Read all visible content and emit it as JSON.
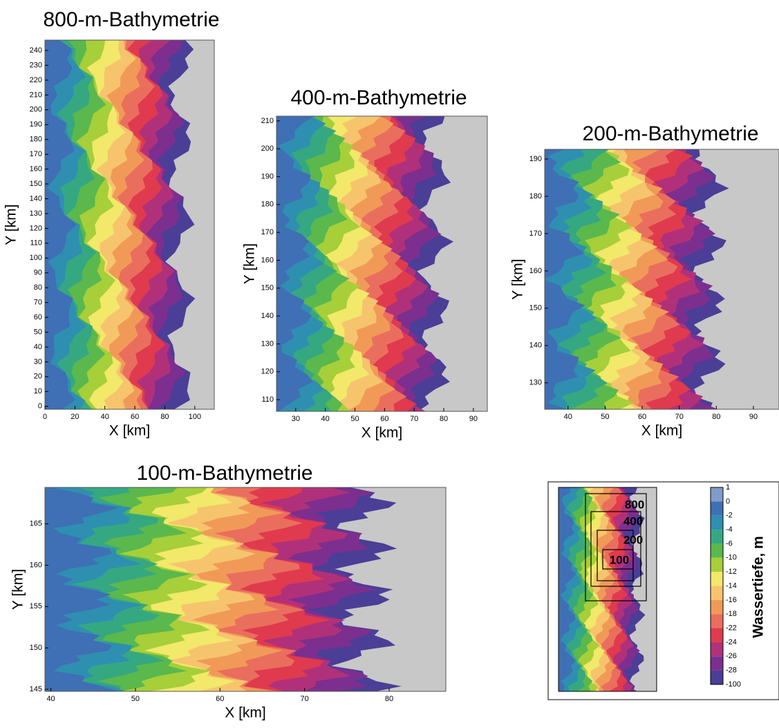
{
  "panels": [
    {
      "title": "800-m-Bathymetrie",
      "xlabel": "X [km]",
      "ylabel": "Y [km]",
      "xlim": [
        0,
        113
      ],
      "ylim": [
        -2,
        247
      ],
      "xticks": [
        0,
        20,
        40,
        60,
        80,
        100
      ],
      "yticks": [
        0,
        10,
        20,
        30,
        40,
        50,
        60,
        70,
        80,
        90,
        100,
        110,
        120,
        130,
        140,
        150,
        160,
        170,
        180,
        190,
        200,
        210,
        220,
        230,
        240
      ]
    },
    {
      "title": "400-m-Bathymetrie",
      "xlabel": "X [km]",
      "ylabel": "Y [km]",
      "xlim": [
        23.5,
        94.7
      ],
      "ylim": [
        105.8,
        211.7
      ],
      "xticks": [
        30,
        40,
        50,
        60,
        70,
        80,
        90
      ],
      "yticks": [
        110,
        120,
        130,
        140,
        150,
        160,
        170,
        180,
        190,
        200,
        210
      ]
    },
    {
      "title": "200-m-Bathymetrie",
      "xlabel": "X [km]",
      "ylabel": "Y [km]",
      "xlim": [
        33.7,
        96.9
      ],
      "ylim": [
        122.9,
        192.6
      ],
      "xticks": [
        40,
        50,
        60,
        70,
        80,
        90
      ],
      "yticks": [
        130,
        140,
        150,
        160,
        170,
        180,
        190
      ]
    },
    {
      "title": "100-m-Bathymetrie",
      "xlabel": "X [km]",
      "ylabel": "Y [km]",
      "xlim": [
        39.3,
        86.7
      ],
      "ylim": [
        144.75,
        169.4
      ],
      "xticks": [
        40,
        50,
        60,
        70,
        80
      ],
      "yticks": [
        145,
        150,
        155,
        160,
        165
      ]
    }
  ],
  "inset": {
    "boxes": [
      "800",
      "400",
      "200",
      "100"
    ]
  },
  "colorbar": {
    "label": "Wassertiefe, m",
    "levels": [
      1,
      0,
      -2,
      -4,
      -6,
      -10,
      -12,
      -14,
      -16,
      -18,
      -22,
      -24,
      -26,
      -28,
      -100
    ],
    "colors": [
      "#7f9cc9",
      "#3f6fb4",
      "#2f8fb0",
      "#35a882",
      "#5ab84d",
      "#a6cf3a",
      "#f2e86a",
      "#f7c46e",
      "#f19a58",
      "#ea6e5e",
      "#e03a4e",
      "#b0317a",
      "#7c2f8e",
      "#4a3e97"
    ]
  }
}
